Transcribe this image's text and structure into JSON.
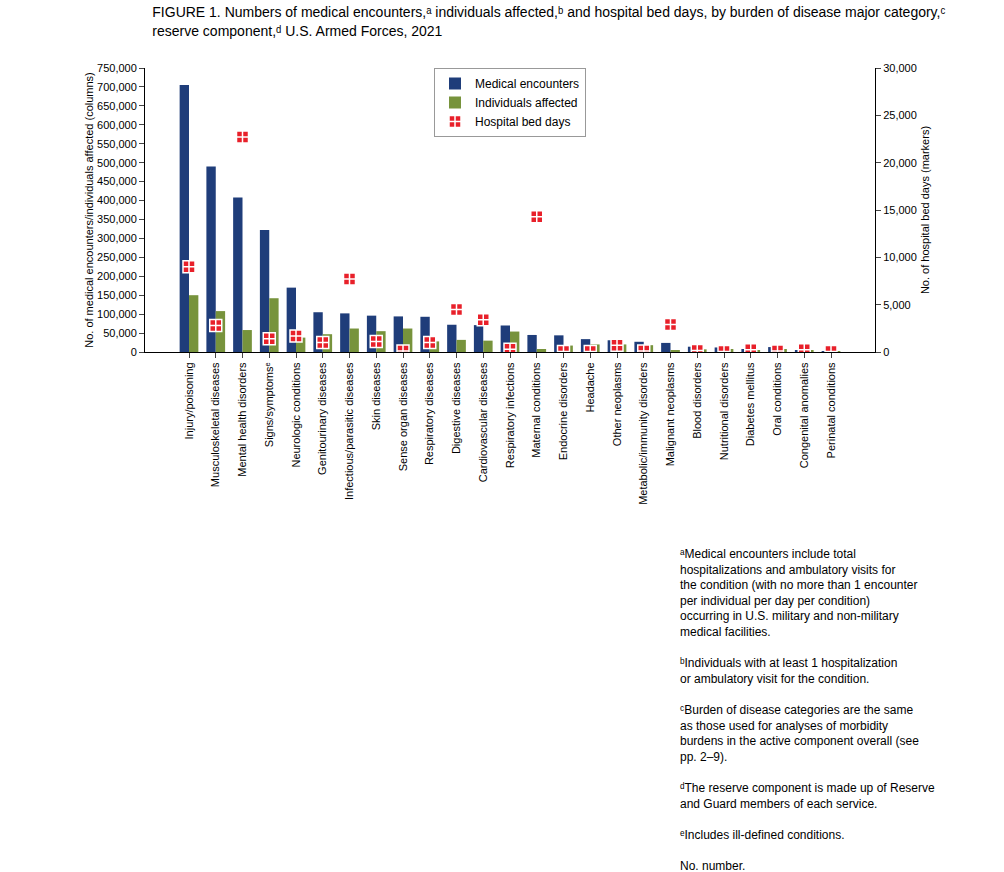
{
  "chart_data": {
    "type": "bar",
    "title": "FIGURE 1. Numbers of medical encounters,ᵃ individuals affected,ᵇ and hospital bed days, by burden of disease major category,ᶜ reserve component,ᵈ U.S. Armed Forces, 2021",
    "y_label": "No. of medical encounters/individuals affected (columns)",
    "y2_label": "No. of hospital bed days (markers)",
    "categories": [
      "Injury/poisoning",
      "Musculoskeletal diseases",
      "Mental health disorders",
      "Signs/symptomsᵉ",
      "Neurologic conditions",
      "Genitourinary diseases",
      "Infectious/parasitic diseases",
      "Skin diseases",
      "Sense organ diseases",
      "Respiratory diseases",
      "Digestive diseases",
      "Cardiovascular diseases",
      "Respiratory infections",
      "Maternal conditions",
      "Endocrine disorders",
      "Headache",
      "Other neoplasms",
      "Metabolic/immunity disorders",
      "Malignant neoplasms",
      "Blood disorders",
      "Nutritional disorders",
      "Diabetes mellitus",
      "Oral conditions",
      "Congenital anomalies",
      "Perinatal conditions"
    ],
    "series": [
      {
        "name": "Medical encounters",
        "type": "bar",
        "color": "#1f3d7a",
        "values": [
          705000,
          490000,
          408000,
          322000,
          170000,
          105000,
          102000,
          96000,
          94000,
          93000,
          72000,
          71000,
          70000,
          45000,
          44000,
          34000,
          31000,
          27000,
          24000,
          14000,
          12000,
          8000,
          13000,
          5000,
          200
        ]
      },
      {
        "name": "Individuals affected",
        "type": "bar",
        "color": "#77933c",
        "values": [
          150000,
          108000,
          58000,
          142000,
          38000,
          47000,
          62000,
          55000,
          62000,
          28000,
          32000,
          30000,
          54000,
          8000,
          17000,
          20000,
          20000,
          18000,
          5000,
          7000,
          8000,
          3000,
          8000,
          3000,
          100
        ]
      },
      {
        "name": "Hospital bed days",
        "type": "scatter",
        "axis": "y2",
        "color": "#e8202a",
        "marker": "square-cross",
        "values": [
          9000,
          2800,
          22700,
          1400,
          1700,
          1000,
          7700,
          1100,
          100,
          1000,
          4500,
          3400,
          300,
          14300,
          50,
          50,
          700,
          100,
          2900,
          150,
          50,
          250,
          100,
          250,
          50
        ]
      }
    ],
    "ylim": [
      0,
      750000
    ],
    "yticks": [
      0,
      {
        "value": 50000,
        "label": "50,000"
      },
      {
        "value": 100000,
        "label": "100,000"
      },
      {
        "value": 150000,
        "label": "150,000"
      },
      {
        "value": 200000,
        "label": "200,000"
      },
      {
        "value": 250000,
        "label": "250,000"
      },
      {
        "value": 300000,
        "label": "300,000"
      },
      {
        "value": 350000,
        "label": "350,000"
      },
      {
        "value": 400000,
        "label": "400,000"
      },
      {
        "value": 450000,
        "label": "450,000"
      },
      {
        "value": 500000,
        "label": "500,000"
      },
      {
        "value": 550000,
        "label": "550,000"
      },
      {
        "value": 600000,
        "label": "600,000"
      },
      {
        "value": 650000,
        "label": "650,000"
      },
      {
        "value": 700000,
        "label": "700,000"
      },
      {
        "value": 750000,
        "label": "750,000"
      }
    ],
    "y2lim": [
      0,
      30000
    ],
    "y2ticks": [
      0,
      {
        "value": 5000,
        "label": "5,000"
      },
      {
        "value": 10000,
        "label": "10,000"
      },
      {
        "value": 15000,
        "label": "15,000"
      },
      {
        "value": 20000,
        "label": "20,000"
      },
      {
        "value": 25000,
        "label": "25,000"
      },
      {
        "value": 30000,
        "label": "30,000"
      }
    ],
    "grid": false,
    "legend": "top",
    "footnotes": [
      "ᵃMedical encounters include total hospitalizations and ambulatory visits for the condition (with no more than 1 encounter per individual per day per condition) occurring in U.S. military and non-military medical facilities.",
      "ᵇIndividuals with at least 1 hospitalization or ambulatory visit for the condition.",
      "ᶜBurden of disease categories are the same as those used for analyses of morbidity burdens in the active component overall (see pp. 2–9).",
      "ᵈThe reserve component is made up of Reserve and Guard members of each service.",
      "ᵉIncludes ill-defined conditions.",
      "No. number."
    ]
  }
}
